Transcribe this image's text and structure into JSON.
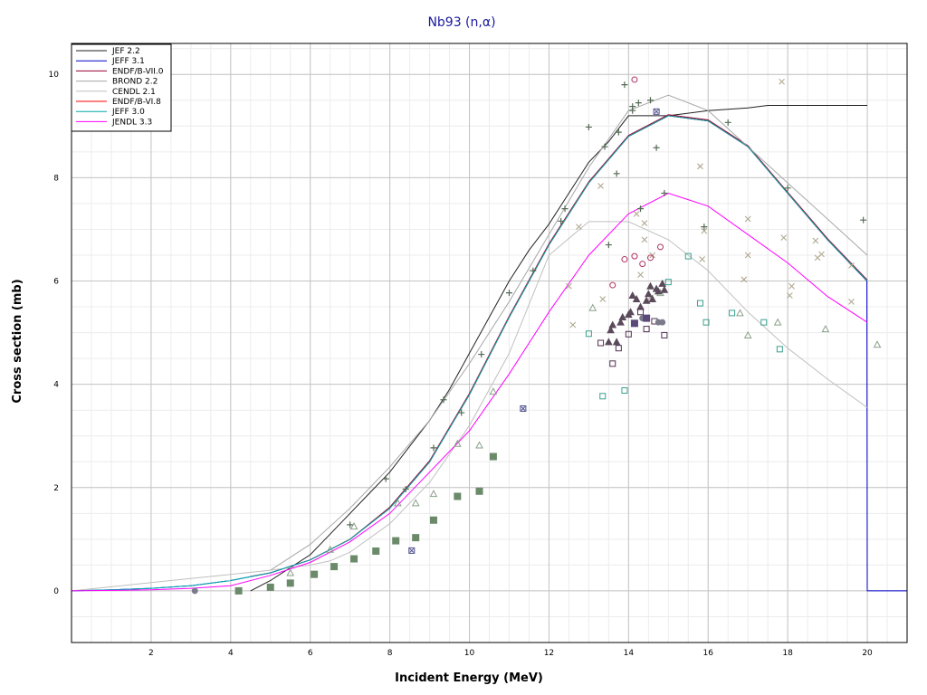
{
  "chart_data": {
    "type": "line",
    "title": "Nb93 (n,α)",
    "xlabel": "Incident Energy (MeV)",
    "ylabel": "Cross section (mb)",
    "xlim": [
      0,
      21
    ],
    "ylim": [
      -1,
      10.6
    ],
    "x_ticks": [
      2,
      4,
      6,
      8,
      10,
      12,
      14,
      16,
      18,
      20
    ],
    "y_ticks": [
      0,
      2,
      4,
      6,
      8,
      10
    ],
    "grid": true,
    "legend_position": "top-left",
    "series": [
      {
        "name": "JEF 2.2",
        "color": "#222222",
        "x": [
          4.5,
          5.0,
          5.5,
          6.0,
          6.5,
          7.0,
          7.5,
          8.0,
          8.5,
          9.0,
          9.5,
          10.0,
          10.5,
          11.0,
          11.5,
          12.0,
          12.5,
          13.0,
          13.5,
          14.0,
          15.0,
          16.0,
          17.0,
          17.5,
          18.0,
          19.0,
          20.0
        ],
        "y": [
          0.0,
          0.2,
          0.45,
          0.7,
          1.1,
          1.5,
          1.9,
          2.3,
          2.8,
          3.3,
          3.9,
          4.6,
          5.3,
          6.0,
          6.6,
          7.1,
          7.7,
          8.3,
          8.7,
          9.2,
          9.2,
          9.3,
          9.35,
          9.4,
          9.4,
          9.4,
          9.4
        ]
      },
      {
        "name": "JEFF 3.1",
        "color": "#0000cc",
        "x": [
          0,
          1,
          2,
          3,
          4,
          5,
          6,
          7,
          8,
          9,
          10,
          11,
          12,
          13,
          14,
          15,
          16,
          17,
          18,
          19,
          19.99,
          20.0,
          21
        ],
        "y": [
          0.0,
          0.02,
          0.05,
          0.1,
          0.2,
          0.35,
          0.6,
          1.0,
          1.6,
          2.5,
          3.8,
          5.3,
          6.7,
          7.9,
          8.8,
          9.2,
          9.1,
          8.6,
          7.7,
          6.8,
          6.0,
          0.0,
          0.0
        ]
      },
      {
        "name": "ENDF/B-VII.0",
        "color": "#990033",
        "x": [
          4.5,
          5,
          6,
          7,
          8,
          9,
          10,
          11,
          12,
          13,
          14,
          15,
          16,
          17,
          18,
          19,
          20
        ],
        "y": [
          0.28,
          0.35,
          0.6,
          1.0,
          1.62,
          2.52,
          3.82,
          5.32,
          6.72,
          7.92,
          8.82,
          9.22,
          9.12,
          8.62,
          7.72,
          6.82,
          6.02
        ]
      },
      {
        "name": "BROND 2.2",
        "color": "#a8a8a8",
        "x": [
          5,
          6,
          7,
          8,
          9,
          10,
          11,
          12,
          13,
          14,
          15,
          16,
          17,
          18,
          19,
          20
        ],
        "y": [
          0.4,
          0.9,
          1.6,
          2.4,
          3.3,
          4.4,
          5.6,
          6.9,
          8.2,
          9.3,
          9.6,
          9.3,
          8.6,
          7.9,
          7.2,
          6.5
        ]
      },
      {
        "name": "CENDL 2.1",
        "color": "#c0c0c0",
        "x": [
          0,
          1,
          2,
          3,
          4,
          5,
          6,
          6.5,
          7,
          8,
          9,
          10,
          11,
          12,
          13,
          14,
          15,
          16,
          17,
          18,
          19,
          20
        ],
        "y": [
          0.0,
          0.08,
          0.16,
          0.24,
          0.32,
          0.4,
          0.5,
          0.58,
          0.75,
          1.3,
          2.1,
          3.2,
          4.6,
          6.5,
          7.15,
          7.15,
          6.8,
          6.2,
          5.4,
          4.7,
          4.1,
          3.55
        ]
      },
      {
        "name": "ENDF/B-VI.8",
        "color": "#ff0000",
        "x": [
          6,
          7,
          8,
          9,
          10,
          11,
          12,
          13,
          14,
          15,
          16,
          17,
          18,
          19,
          20
        ],
        "y": [
          0.6,
          1.0,
          1.6,
          2.5,
          3.8,
          5.3,
          6.7,
          7.9,
          8.8,
          9.2,
          9.1,
          8.6,
          7.7,
          6.8,
          6.0
        ]
      },
      {
        "name": "JEFF 3.0",
        "color": "#00aaaa",
        "x": [
          0,
          1,
          2,
          3,
          4,
          5,
          6,
          7,
          8,
          9,
          10,
          11,
          12,
          13,
          14,
          15,
          16,
          17,
          18,
          19,
          20
        ],
        "y": [
          0.0,
          0.02,
          0.05,
          0.1,
          0.2,
          0.35,
          0.6,
          1.0,
          1.6,
          2.5,
          3.8,
          5.3,
          6.7,
          7.9,
          8.8,
          9.2,
          9.1,
          8.6,
          7.7,
          6.8,
          6.0
        ]
      },
      {
        "name": "JENDL 3.3",
        "color": "#ff00ff",
        "x": [
          0,
          1,
          2,
          3,
          4,
          5,
          6,
          7,
          8,
          9,
          10,
          11,
          12,
          13,
          14,
          15,
          16,
          17,
          18,
          19,
          20
        ],
        "y": [
          0.0,
          0.01,
          0.02,
          0.05,
          0.1,
          0.3,
          0.55,
          0.95,
          1.5,
          2.3,
          3.1,
          4.2,
          5.4,
          6.5,
          7.3,
          7.7,
          7.45,
          6.9,
          6.35,
          5.7,
          5.2
        ]
      }
    ],
    "exp_series": [
      {
        "marker": "plus",
        "color": "#556b55",
        "points": [
          [
            7.0,
            1.28
          ],
          [
            7.9,
            2.17
          ],
          [
            8.4,
            1.97
          ],
          [
            9.1,
            2.77
          ],
          [
            9.35,
            3.7
          ],
          [
            9.8,
            3.45
          ],
          [
            10.3,
            4.58
          ],
          [
            11.0,
            5.77
          ],
          [
            11.6,
            6.2
          ],
          [
            12.3,
            7.16
          ],
          [
            13.0,
            8.98
          ],
          [
            13.4,
            8.6
          ],
          [
            13.7,
            8.08
          ],
          [
            13.75,
            8.88
          ],
          [
            13.9,
            9.8
          ],
          [
            14.1,
            9.3
          ],
          [
            14.1,
            9.38
          ],
          [
            14.3,
            7.4
          ],
          [
            14.55,
            9.5
          ],
          [
            14.7,
            8.58
          ],
          [
            14.9,
            7.7
          ],
          [
            15.9,
            7.05
          ],
          [
            16.5,
            9.07
          ],
          [
            18.0,
            7.8
          ],
          [
            19.9,
            7.18
          ],
          [
            12.4,
            7.4
          ],
          [
            13.5,
            6.7
          ],
          [
            14.25,
            9.45
          ]
        ]
      },
      {
        "marker": "cross",
        "color": "#b0a890",
        "points": [
          [
            12.5,
            5.9
          ],
          [
            12.6,
            5.15
          ],
          [
            12.75,
            7.05
          ],
          [
            13.3,
            7.84
          ],
          [
            13.35,
            5.65
          ],
          [
            14.2,
            7.3
          ],
          [
            14.4,
            7.12
          ],
          [
            14.4,
            6.8
          ],
          [
            14.3,
            6.12
          ],
          [
            14.55,
            5.68
          ],
          [
            14.6,
            6.5
          ],
          [
            15.8,
            8.22
          ],
          [
            15.85,
            6.42
          ],
          [
            15.9,
            6.97
          ],
          [
            16.9,
            6.03
          ],
          [
            17.0,
            7.2
          ],
          [
            17.0,
            6.5
          ],
          [
            17.85,
            9.86
          ],
          [
            17.9,
            6.84
          ],
          [
            18.1,
            5.9
          ],
          [
            18.05,
            5.72
          ],
          [
            18.7,
            6.78
          ],
          [
            18.75,
            6.45
          ],
          [
            18.85,
            6.52
          ],
          [
            19.6,
            5.6
          ],
          [
            19.6,
            6.3
          ]
        ]
      },
      {
        "marker": "triangle-open",
        "color": "#8aa08a",
        "points": [
          [
            5.5,
            0.35
          ],
          [
            6.5,
            0.8
          ],
          [
            7.1,
            1.25
          ],
          [
            8.2,
            1.7
          ],
          [
            8.65,
            1.7
          ],
          [
            9.1,
            1.88
          ],
          [
            9.7,
            2.85
          ],
          [
            10.25,
            2.82
          ],
          [
            10.6,
            3.86
          ],
          [
            13.1,
            5.48
          ],
          [
            14.8,
            5.77
          ],
          [
            16.8,
            5.38
          ],
          [
            17.0,
            4.95
          ],
          [
            17.75,
            5.2
          ],
          [
            18.95,
            5.07
          ],
          [
            20.25,
            4.77
          ]
        ]
      },
      {
        "marker": "triangle-filled",
        "color": "#5a4a5a",
        "points": [
          [
            13.55,
            5.05
          ],
          [
            13.6,
            5.15
          ],
          [
            13.8,
            5.2
          ],
          [
            13.85,
            5.3
          ],
          [
            14.0,
            5.35
          ],
          [
            14.05,
            5.4
          ],
          [
            14.1,
            5.72
          ],
          [
            14.2,
            5.65
          ],
          [
            14.3,
            5.5
          ],
          [
            14.45,
            5.62
          ],
          [
            14.5,
            5.75
          ],
          [
            14.55,
            5.9
          ],
          [
            14.6,
            5.65
          ],
          [
            14.7,
            5.85
          ],
          [
            14.75,
            5.8
          ],
          [
            14.85,
            5.95
          ],
          [
            14.9,
            5.83
          ],
          [
            13.5,
            4.82
          ],
          [
            13.7,
            4.82
          ]
        ]
      },
      {
        "marker": "square-filled",
        "color": "#6a8a6a",
        "points": [
          [
            4.2,
            0.0
          ],
          [
            5.0,
            0.07
          ],
          [
            5.5,
            0.15
          ],
          [
            6.1,
            0.32
          ],
          [
            6.6,
            0.47
          ],
          [
            7.1,
            0.62
          ],
          [
            7.65,
            0.77
          ],
          [
            8.15,
            0.97
          ],
          [
            8.65,
            1.03
          ],
          [
            9.1,
            1.37
          ],
          [
            9.7,
            1.83
          ],
          [
            10.25,
            1.93
          ],
          [
            10.6,
            2.6
          ]
        ]
      },
      {
        "marker": "square-open-teal",
        "color": "#3aa090",
        "points": [
          [
            13.0,
            4.98
          ],
          [
            13.35,
            3.77
          ],
          [
            13.9,
            3.88
          ],
          [
            15.0,
            5.98
          ],
          [
            15.5,
            6.48
          ],
          [
            15.8,
            5.57
          ],
          [
            15.95,
            5.2
          ],
          [
            16.6,
            5.38
          ],
          [
            17.4,
            5.2
          ],
          [
            17.8,
            4.68
          ]
        ]
      },
      {
        "marker": "square-open-dark",
        "color": "#503050",
        "points": [
          [
            13.3,
            4.8
          ],
          [
            13.6,
            4.4
          ],
          [
            13.75,
            4.7
          ],
          [
            14.0,
            4.97
          ],
          [
            14.3,
            5.4
          ],
          [
            14.45,
            5.07
          ],
          [
            14.65,
            5.22
          ],
          [
            14.9,
            4.95
          ]
        ]
      },
      {
        "marker": "circle-open-red",
        "color": "#b03060",
        "points": [
          [
            13.6,
            5.92
          ],
          [
            13.9,
            6.42
          ],
          [
            14.15,
            6.48
          ],
          [
            14.35,
            6.33
          ],
          [
            14.55,
            6.45
          ],
          [
            14.8,
            6.66
          ],
          [
            14.15,
            9.9
          ]
        ]
      },
      {
        "marker": "circle-filled",
        "color": "#7a7a8a",
        "points": [
          [
            3.1,
            0.0
          ],
          [
            14.35,
            5.28
          ],
          [
            14.75,
            5.2
          ],
          [
            14.85,
            5.2
          ]
        ]
      },
      {
        "marker": "square-x",
        "color": "#4a4a8a",
        "points": [
          [
            8.55,
            0.78
          ],
          [
            11.35,
            3.53
          ],
          [
            14.7,
            9.28
          ]
        ]
      },
      {
        "marker": "square-filled-dark",
        "color": "#5a4a7a",
        "points": [
          [
            14.15,
            5.18
          ],
          [
            14.45,
            5.28
          ]
        ]
      }
    ]
  }
}
